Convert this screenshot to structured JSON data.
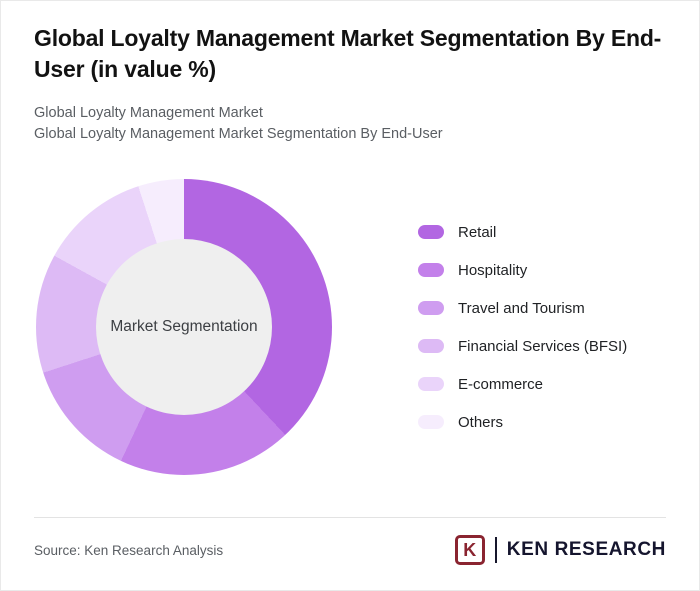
{
  "header": {
    "title": "Global Loyalty Management Market Segmentation By End-User (in value %)",
    "subtitle_line1": "Global Loyalty Management Market",
    "subtitle_line2": "Global Loyalty Management Market Segmentation By End-User"
  },
  "chart_data": {
    "type": "pie",
    "variant": "donut",
    "title": "Global Loyalty Management Market Segmentation By End-User (in value %)",
    "center_label": "Market Segmentation",
    "unit": "value %",
    "legend_position": "right",
    "values_labeled_on_chart": false,
    "segments": [
      {
        "label": "Retail",
        "value": 38,
        "color": "#b266e2"
      },
      {
        "label": "Hospitality",
        "value": 19,
        "color": "#c380ea"
      },
      {
        "label": "Travel and Tourism",
        "value": 13,
        "color": "#cf9df0"
      },
      {
        "label": "Financial Services (BFSI)",
        "value": 13,
        "color": "#ddbaf5"
      },
      {
        "label": "E-commerce",
        "value": 12,
        "color": "#ead4fa"
      },
      {
        "label": "Others",
        "value": 5,
        "color": "#f6edfd"
      }
    ]
  },
  "footer": {
    "source": "Source: Ken Research Analysis",
    "logo": {
      "mark": "K",
      "text": "KEN RESEARCH",
      "color": "#8a2430"
    }
  }
}
